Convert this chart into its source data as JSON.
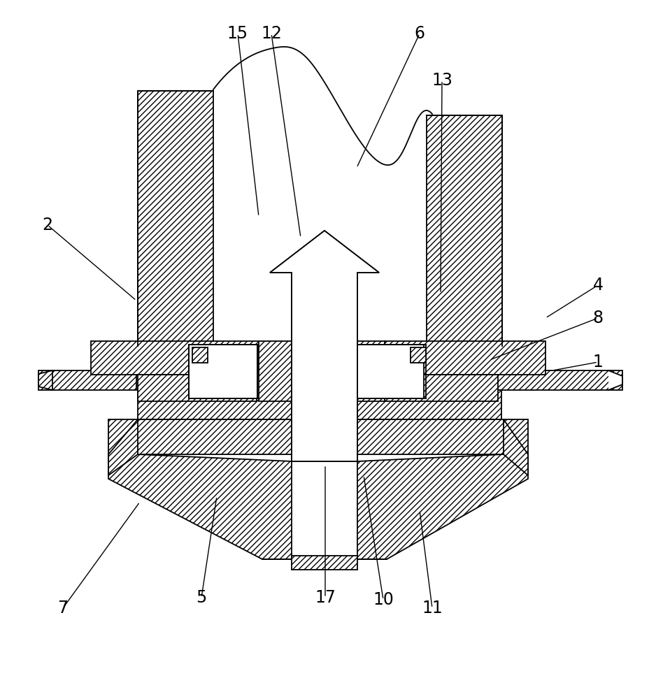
{
  "bg_color": "#ffffff",
  "line_color": "#000000",
  "fig_width": 9.29,
  "fig_height": 10.0,
  "labels_info": [
    [
      "1",
      855,
      518,
      790,
      530
    ],
    [
      "2",
      68,
      322,
      195,
      430
    ],
    [
      "4",
      855,
      408,
      780,
      455
    ],
    [
      "5",
      288,
      855,
      310,
      710
    ],
    [
      "6",
      600,
      48,
      510,
      240
    ],
    [
      "7",
      90,
      870,
      200,
      718
    ],
    [
      "8",
      855,
      455,
      700,
      515
    ],
    [
      "10",
      548,
      858,
      520,
      680
    ],
    [
      "11",
      618,
      870,
      600,
      730
    ],
    [
      "12",
      388,
      48,
      430,
      340
    ],
    [
      "13",
      632,
      115,
      630,
      420
    ],
    [
      "15",
      340,
      48,
      370,
      310
    ],
    [
      "17",
      465,
      855,
      465,
      665
    ]
  ]
}
